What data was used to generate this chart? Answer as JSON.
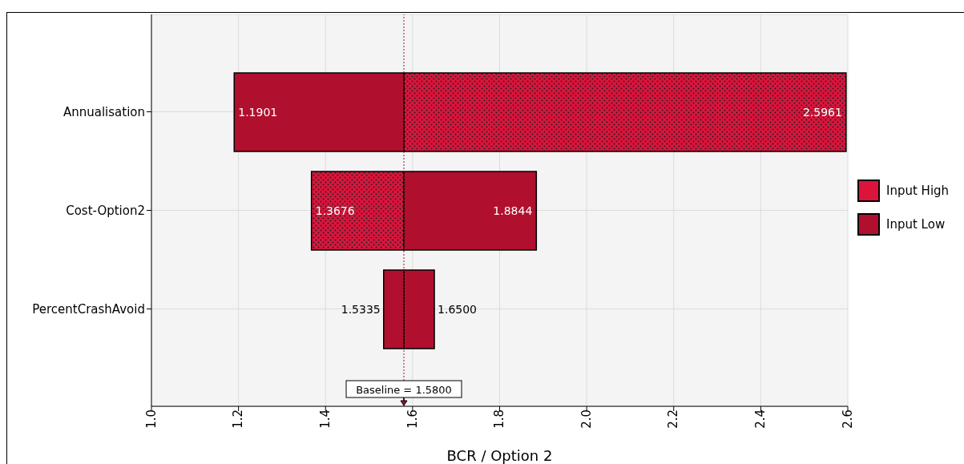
{
  "chart_data": {
    "type": "bar",
    "orientation": "horizontal",
    "xlabel": "BCR / Option 2",
    "categories": [
      "Annualisation",
      "Cost-Option2",
      "PercentCrashAvoid"
    ],
    "series": [
      {
        "name": "Input High",
        "color": "#dc143c",
        "colors": [
          "#dc143c",
          "#dc143c",
          "#b0102e"
        ],
        "base": [
          1.58,
          1.3676,
          1.58
        ],
        "values": [
          1.0161,
          0.2124,
          0.07
        ]
      },
      {
        "name": "Input Low",
        "color": "#b0102e",
        "base": [
          1.1901,
          1.58,
          1.5335
        ],
        "values": [
          0.3899,
          0.3044,
          0.0465
        ]
      }
    ],
    "annotations": [
      {
        "text": "1.1901",
        "x": 1.1901,
        "y": "Annualisation"
      },
      {
        "text": "2.5961",
        "x": 2.5961,
        "y": "Annualisation"
      },
      {
        "text": "1.3676",
        "x": 1.3676,
        "y": "Cost-Option2"
      },
      {
        "text": "1.8844",
        "x": 1.8844,
        "y": "Cost-Option2"
      },
      {
        "text": "1.5335",
        "x": 1.5335,
        "y": "PercentCrashAvoid"
      },
      {
        "text": "1.6500",
        "x": 1.65,
        "y": "PercentCrashAvoid"
      }
    ],
    "xlim": [
      1.0,
      2.6
    ],
    "xticks": [
      {
        "value": 1.0,
        "label": "1.0"
      },
      1.2,
      1.4,
      1.6,
      1.8,
      {
        "value": 2.0,
        "label": "2.0"
      },
      2.2,
      2.4,
      2.6
    ],
    "ref_lines": [
      {
        "axis": "x",
        "value": 1.58,
        "label": "Baseline = 1.5800",
        "color": "#a0102e",
        "line_style": "dotted"
      }
    ],
    "grid": true,
    "legend": "right"
  }
}
